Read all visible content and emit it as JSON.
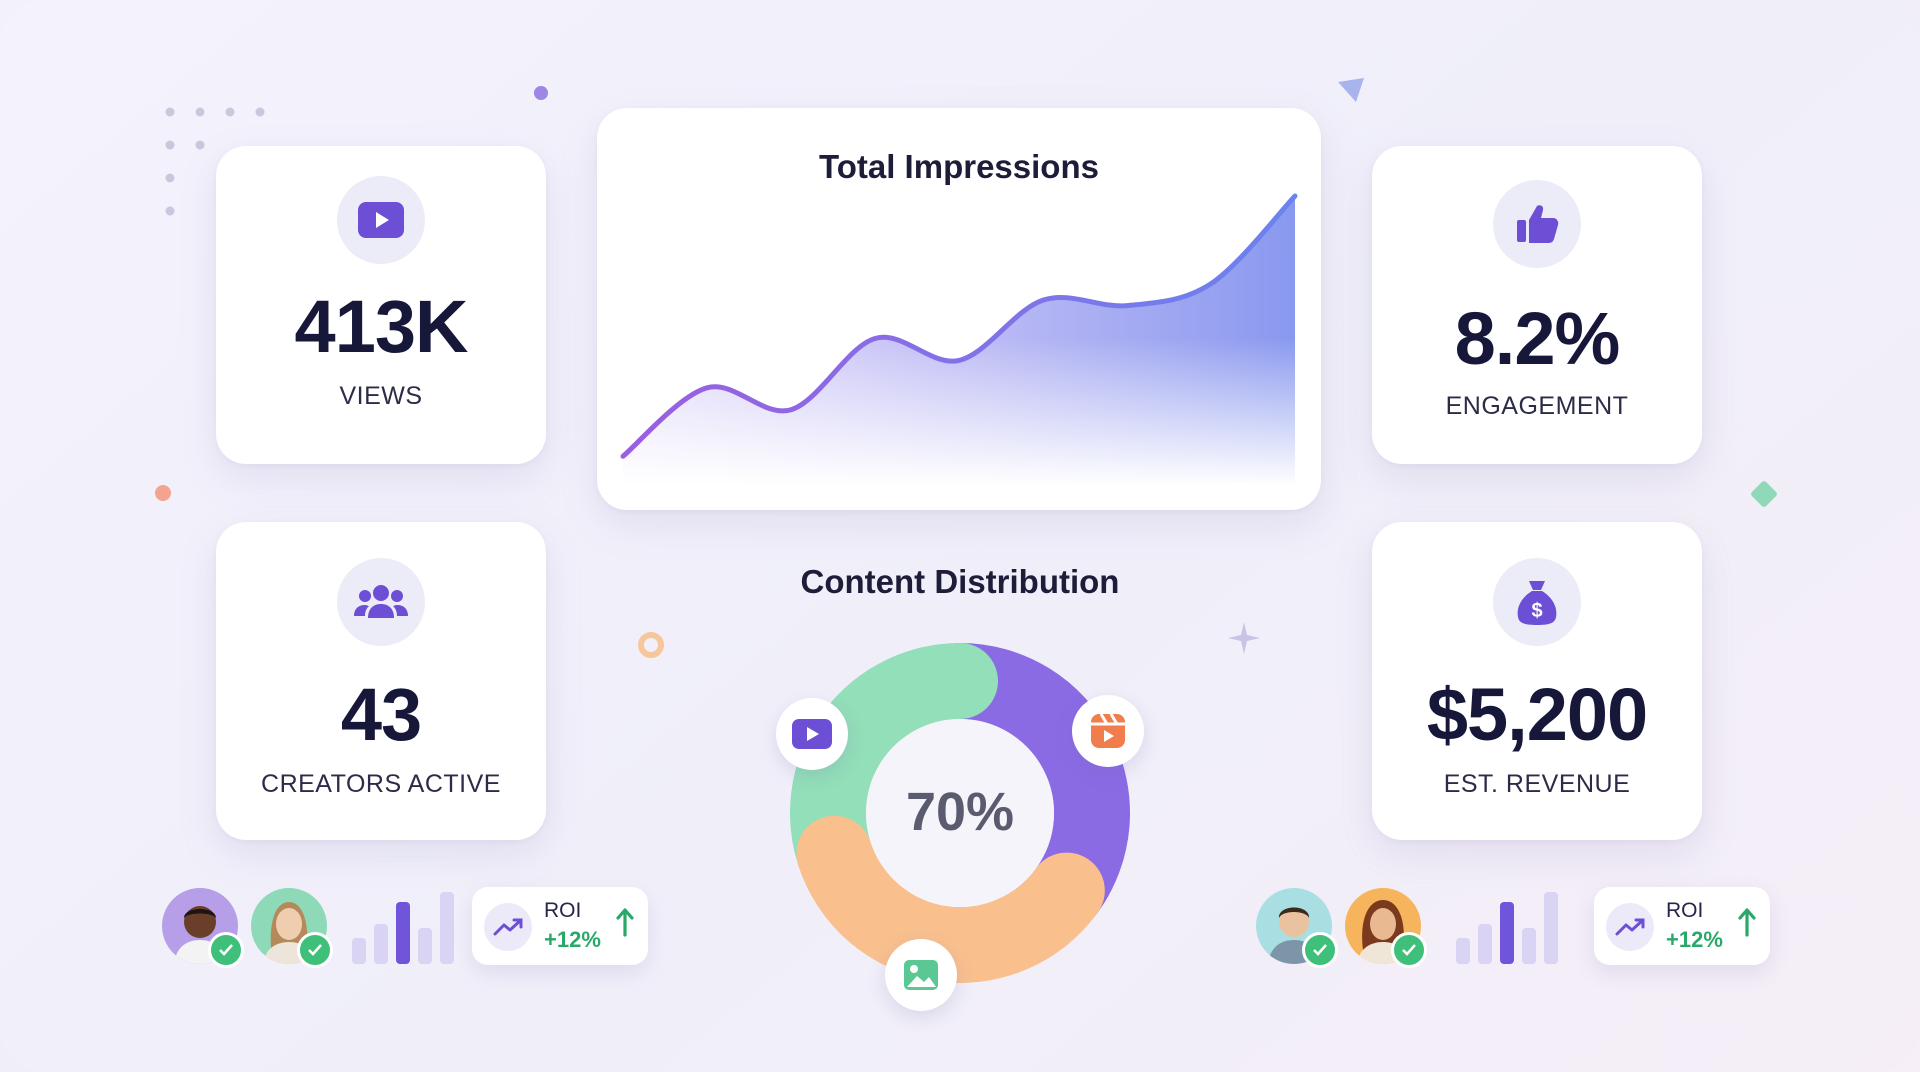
{
  "stats": {
    "views": {
      "value": "413K",
      "label": "VIEWS",
      "icon": "play-icon"
    },
    "engagement": {
      "value": "8.2%",
      "label": "ENGAGEMENT",
      "icon": "thumbs-up-icon"
    },
    "creators": {
      "value": "43",
      "label": "CREATORS ACTIVE",
      "icon": "users-icon"
    },
    "revenue": {
      "value": "$5,200",
      "label": "EST. REVENUE",
      "icon": "money-bag-icon"
    }
  },
  "impressions": {
    "title": "Total Impressions"
  },
  "distribution": {
    "title": "Content Distribution",
    "center_label": "70%"
  },
  "roi_left": {
    "label": "ROI",
    "value": "+12%"
  },
  "roi_right": {
    "label": "ROI",
    "value": "+12%"
  },
  "colors": {
    "accent_purple": "#7b5fe0",
    "peach": "#f9c08e",
    "mint": "#93dfb9",
    "positive_green": "#2aa86a",
    "check_green": "#3ec07a",
    "text_dark": "#17173a"
  },
  "chart_data": [
    {
      "type": "area",
      "title": "Total Impressions",
      "x": [
        0,
        1,
        2,
        3,
        4,
        5,
        6,
        7,
        8
      ],
      "series": [
        {
          "values": [
            5,
            30,
            22,
            48,
            40,
            62,
            60,
            68,
            100
          ]
        }
      ],
      "ylim": [
        0,
        100
      ],
      "grid": false
    },
    {
      "type": "pie",
      "title": "Content Distribution",
      "donut": true,
      "center_label": "70%",
      "slices": [
        {
          "icon": "video-icon",
          "value": 35,
          "color": "#8b6be4"
        },
        {
          "icon": "reel-icon",
          "value": 35,
          "color": "#f9c08e"
        },
        {
          "icon": "image-icon",
          "value": 30,
          "color": "#93dfb9"
        }
      ]
    }
  ]
}
